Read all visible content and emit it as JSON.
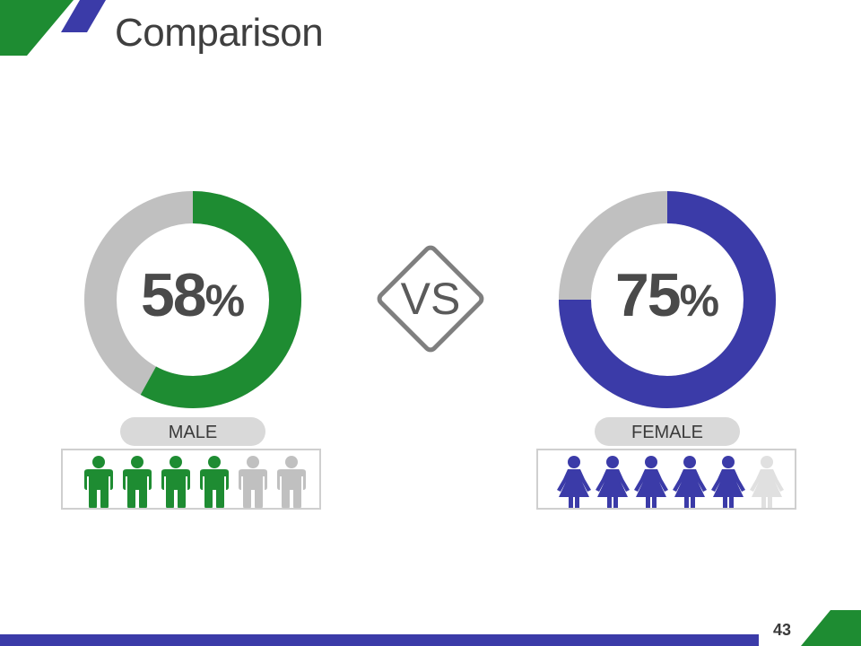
{
  "slide": {
    "title": "Comparison",
    "page_number": "43",
    "vs_label": "VS"
  },
  "colors": {
    "male": "#1e8c32",
    "female": "#3b3ba8",
    "inactive": "#c0c0c0",
    "female_inactive": "#e0e0e0"
  },
  "icons": {
    "male": "man-icon",
    "female": "woman-icon"
  },
  "male": {
    "label": "MALE",
    "percent_number": "58",
    "percent_sign": "%",
    "fraction": 0.58,
    "icons_total": 6,
    "icons_active": 4
  },
  "female": {
    "label": "FEMALE",
    "percent_number": "75",
    "percent_sign": "%",
    "fraction": 0.75,
    "icons_total": 6,
    "icons_active": 5
  }
}
